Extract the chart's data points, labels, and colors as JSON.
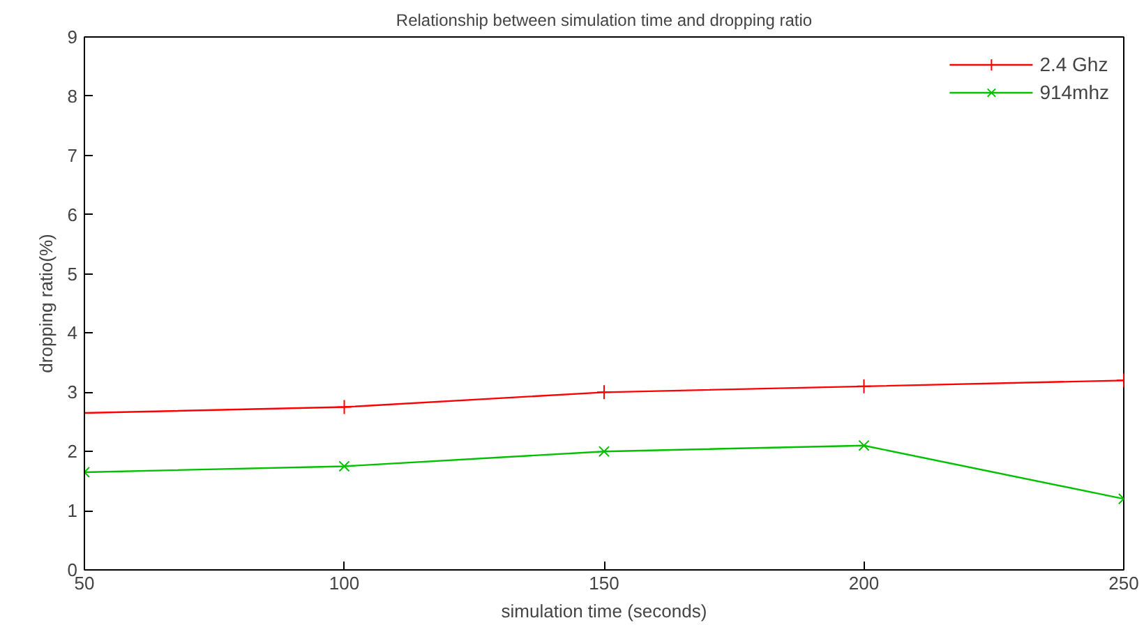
{
  "chart_data": {
    "type": "line",
    "title": "Relationship between simulation time and dropping ratio",
    "xlabel": "simulation time (seconds)",
    "ylabel": "dropping ratio(%)",
    "x": [
      50,
      100,
      150,
      200,
      250
    ],
    "series": [
      {
        "name": "2.4 Ghz",
        "color": "#ff0000",
        "marker": "cross",
        "values": [
          2.65,
          2.75,
          3.0,
          3.1,
          3.2
        ]
      },
      {
        "name": "914mhz",
        "color": "#00c000",
        "marker": "x",
        "values": [
          1.65,
          1.75,
          2.0,
          2.1,
          1.2
        ]
      }
    ],
    "xlim": [
      50,
      250
    ],
    "xticks": [
      50,
      100,
      150,
      200,
      250
    ],
    "ylim": [
      0,
      9
    ],
    "yticks": [
      0,
      1,
      2,
      3,
      4,
      5,
      6,
      7,
      8,
      9
    ],
    "grid": false,
    "legend": "top right",
    "line_style": "solid"
  }
}
